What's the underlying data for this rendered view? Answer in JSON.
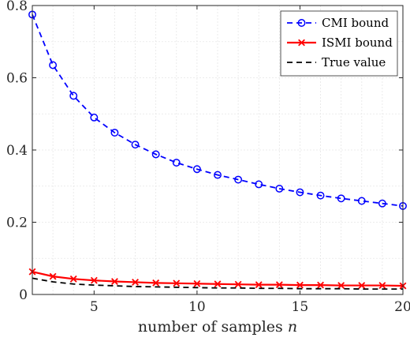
{
  "chart_data": {
    "type": "line",
    "title": "",
    "xlabel": "number of samples",
    "xlabel_var": "n",
    "ylabel": "",
    "xlim": [
      2,
      20
    ],
    "ylim": [
      0,
      0.8
    ],
    "xticks": [
      5,
      10,
      15,
      20
    ],
    "yticks": [
      0,
      0.2,
      0.4,
      0.6,
      0.8
    ],
    "xtick_labels": [
      "5",
      "10",
      "15",
      "20"
    ],
    "ytick_labels": [
      "0",
      "0.2",
      "0.4",
      "0.6",
      "0.8"
    ],
    "grid": true,
    "legend_position": "top-right",
    "x": [
      2,
      3,
      4,
      5,
      6,
      7,
      8,
      9,
      10,
      11,
      12,
      13,
      14,
      15,
      16,
      17,
      18,
      19,
      20
    ],
    "series": [
      {
        "name": "CMI bound",
        "color": "#0000ff",
        "line": "dashed",
        "marker": "circle",
        "values": [
          0.775,
          0.635,
          0.55,
          0.49,
          0.448,
          0.415,
          0.388,
          0.365,
          0.347,
          0.331,
          0.318,
          0.305,
          0.293,
          0.283,
          0.274,
          0.266,
          0.259,
          0.252,
          0.245
        ]
      },
      {
        "name": "ISMI bound",
        "color": "#ff0000",
        "line": "solid",
        "marker": "x",
        "values": [
          0.063,
          0.05,
          0.043,
          0.039,
          0.036,
          0.034,
          0.032,
          0.031,
          0.03,
          0.029,
          0.028,
          0.027,
          0.027,
          0.026,
          0.026,
          0.025,
          0.025,
          0.025,
          0.024
        ]
      },
      {
        "name": "True value",
        "color": "#000000",
        "line": "dashed",
        "marker": "none",
        "values": [
          0.045,
          0.035,
          0.029,
          0.026,
          0.024,
          0.022,
          0.021,
          0.02,
          0.019,
          0.018,
          0.018,
          0.017,
          0.017,
          0.016,
          0.016,
          0.016,
          0.015,
          0.015,
          0.015
        ]
      }
    ]
  }
}
